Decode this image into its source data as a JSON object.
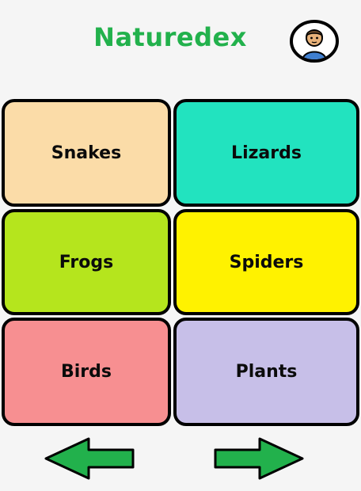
{
  "header": {
    "title": "Naturedex",
    "title_color": "#22b14c",
    "profile_icon": "user-avatar-icon"
  },
  "categories": [
    {
      "label": "Snakes",
      "color": "#fbdca8"
    },
    {
      "label": "Lizards",
      "color": "#22e3bf"
    },
    {
      "label": "Frogs",
      "color": "#b5e51d"
    },
    {
      "label": "Spiders",
      "color": "#fff200"
    },
    {
      "label": "Birds",
      "color": "#f78f91"
    },
    {
      "label": "Plants",
      "color": "#c7bfe8"
    }
  ],
  "navigation": {
    "prev_icon": "arrow-left-icon",
    "next_icon": "arrow-right-icon",
    "arrow_color": "#22b14c"
  }
}
